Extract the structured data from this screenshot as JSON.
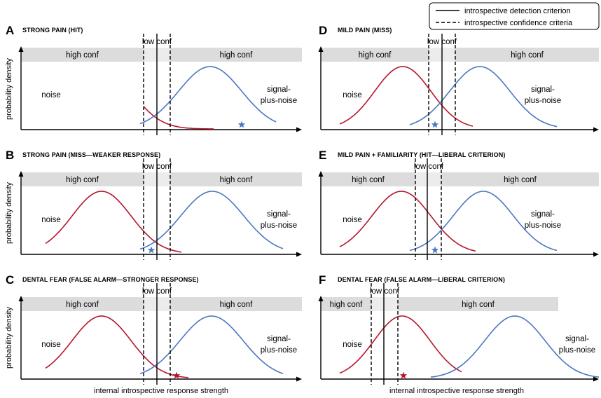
{
  "legend": {
    "solid_label": "introspective detection criterion",
    "dashed_label": "introspective confidence criteria"
  },
  "y_axis_label": "probability density",
  "x_axis_label": "internal introspective response strength",
  "band_labels": {
    "high_conf": "high conf",
    "low_conf": "low conf"
  },
  "curve_labels": {
    "noise": "noise",
    "signal_line1": "signal-",
    "signal_line2": "plus-noise"
  },
  "colors": {
    "noise": "#b5162a",
    "signal": "#4a78c2",
    "band": "#dcdcdc",
    "band_light": "#ececec"
  },
  "panels": [
    {
      "letter": "A",
      "title": "STRONG PAIN (HIT)",
      "star": {
        "color": "signal"
      }
    },
    {
      "letter": "B",
      "title": "STRONG PAIN (MISS—WEAKER RESPONSE)",
      "star": {
        "color": "signal"
      }
    },
    {
      "letter": "C",
      "title": "DENTAL FEAR (FALSE ALARM—STRONGER RESPONSE)",
      "star": {
        "color": "noise"
      }
    },
    {
      "letter": "D",
      "title": "MILD PAIN (MISS)",
      "star": {
        "color": "signal"
      }
    },
    {
      "letter": "E",
      "title": "MILD PAIN + FAMILIARITY (HIT—LIBERAL CRITERION)",
      "star": {
        "color": "signal"
      }
    },
    {
      "letter": "F",
      "title": "DENTAL FEAR (FALSE ALARM—LIBERAL CRITERION)",
      "star": {
        "color": "noise"
      }
    }
  ]
}
